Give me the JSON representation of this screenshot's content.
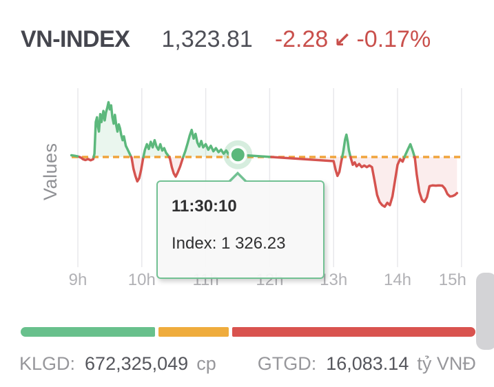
{
  "header": {
    "symbol": "VN-INDEX",
    "value": "1,323.81",
    "change": "-2.28",
    "arrow_icon": "↙",
    "change_percent": "-0.17%",
    "symbol_color": "#45464e",
    "value_color": "#4e4f57",
    "negative_color": "#c9504c"
  },
  "tooltip": {
    "time": "11:30:10",
    "index_line": "Index: 1 326.23"
  },
  "chart_data": {
    "type": "line",
    "title": "",
    "xlabel": "",
    "ylabel": "Values",
    "legend": "none",
    "grid": "vertical-only",
    "x_ticks": [
      {
        "t": 9,
        "label": "9h"
      },
      {
        "t": 10,
        "label": "10h"
      },
      {
        "t": 11,
        "label": "11h"
      },
      {
        "t": 12,
        "label": "12h"
      },
      {
        "t": 13,
        "label": "13h"
      },
      {
        "t": 14,
        "label": "14h"
      },
      {
        "t": 15,
        "label": "15h"
      }
    ],
    "x_range_hours": [
      8.9,
      15
    ],
    "y_range": [
      1322.5,
      1330.0
    ],
    "reference_value": 1326.09,
    "close_value": 1323.81,
    "marker": {
      "t": 11.503,
      "value": 1326.23,
      "time_label": "11:30:10"
    },
    "colors": {
      "up": "#5cb87c",
      "down": "#d5534f",
      "up_fill": "rgba(92,184,124,0.13)",
      "down_fill": "rgba(213,83,79,0.10)",
      "reference": "#f0a43c",
      "grid": "#e8e8eb",
      "tick_label": "#b1b1b5",
      "marker_halo": "rgba(92,184,124,0.25)"
    },
    "series": [
      {
        "name": "VN-INDEX",
        "points": [
          [
            8.9,
            1326.2
          ],
          [
            8.95,
            1326.17
          ],
          [
            9.0,
            1326.13
          ],
          [
            9.05,
            1326.05
          ],
          [
            9.08,
            1325.95
          ],
          [
            9.12,
            1325.9
          ],
          [
            9.16,
            1325.96
          ],
          [
            9.2,
            1325.88
          ],
          [
            9.24,
            1325.95
          ],
          [
            9.26,
            1326.3
          ],
          [
            9.28,
            1328.3
          ],
          [
            9.3,
            1328.6
          ],
          [
            9.31,
            1328.1
          ],
          [
            9.33,
            1327.7
          ],
          [
            9.35,
            1328.8
          ],
          [
            9.37,
            1328.3
          ],
          [
            9.4,
            1329.0
          ],
          [
            9.42,
            1328.4
          ],
          [
            9.44,
            1328.9
          ],
          [
            9.46,
            1329.2
          ],
          [
            9.48,
            1329.55
          ],
          [
            9.5,
            1329.1
          ],
          [
            9.52,
            1329.35
          ],
          [
            9.54,
            1328.6
          ],
          [
            9.56,
            1328.2
          ],
          [
            9.58,
            1328.75
          ],
          [
            9.6,
            1328.1
          ],
          [
            9.62,
            1327.7
          ],
          [
            9.64,
            1328.15
          ],
          [
            9.66,
            1327.9
          ],
          [
            9.68,
            1327.45
          ],
          [
            9.7,
            1327.15
          ],
          [
            9.72,
            1327.4
          ],
          [
            9.75,
            1326.8
          ],
          [
            9.78,
            1326.55
          ],
          [
            9.81,
            1326.3
          ],
          [
            9.84,
            1326.05
          ],
          [
            9.87,
            1325.35
          ],
          [
            9.9,
            1324.9
          ],
          [
            9.93,
            1324.55
          ],
          [
            9.96,
            1324.75
          ],
          [
            9.99,
            1325.3
          ],
          [
            10.02,
            1326.0
          ],
          [
            10.05,
            1326.55
          ],
          [
            10.08,
            1326.9
          ],
          [
            10.11,
            1326.6
          ],
          [
            10.14,
            1327.05
          ],
          [
            10.17,
            1326.7
          ],
          [
            10.2,
            1327.15
          ],
          [
            10.23,
            1326.75
          ],
          [
            10.26,
            1326.55
          ],
          [
            10.29,
            1326.9
          ],
          [
            10.32,
            1326.5
          ],
          [
            10.35,
            1326.65
          ],
          [
            10.38,
            1326.35
          ],
          [
            10.41,
            1326.2
          ],
          [
            10.44,
            1326.0
          ],
          [
            10.47,
            1325.45
          ],
          [
            10.5,
            1325.05
          ],
          [
            10.53,
            1324.85
          ],
          [
            10.56,
            1325.1
          ],
          [
            10.6,
            1325.5
          ],
          [
            10.64,
            1326.0
          ],
          [
            10.68,
            1326.45
          ],
          [
            10.72,
            1327.0
          ],
          [
            10.75,
            1327.45
          ],
          [
            10.78,
            1327.8
          ],
          [
            10.81,
            1327.25
          ],
          [
            10.84,
            1327.55
          ],
          [
            10.87,
            1327.0
          ],
          [
            10.9,
            1326.75
          ],
          [
            10.93,
            1327.1
          ],
          [
            10.96,
            1326.7
          ],
          [
            11.0,
            1326.9
          ],
          [
            11.04,
            1326.55
          ],
          [
            11.08,
            1326.8
          ],
          [
            11.12,
            1326.45
          ],
          [
            11.16,
            1326.65
          ],
          [
            11.2,
            1326.4
          ],
          [
            11.24,
            1326.55
          ],
          [
            11.28,
            1326.3
          ],
          [
            11.32,
            1326.5
          ],
          [
            11.36,
            1326.25
          ],
          [
            11.4,
            1326.4
          ],
          [
            11.44,
            1326.15
          ],
          [
            11.46,
            1325.95
          ],
          [
            11.48,
            1326.15
          ],
          [
            11.503,
            1326.23
          ],
          [
            13.0,
            1325.83
          ],
          [
            13.03,
            1325.3
          ],
          [
            13.06,
            1324.9
          ],
          [
            13.09,
            1325.15
          ],
          [
            13.12,
            1325.8
          ],
          [
            13.15,
            1326.4
          ],
          [
            13.18,
            1327.2
          ],
          [
            13.2,
            1327.5
          ],
          [
            13.22,
            1327.1
          ],
          [
            13.24,
            1326.5
          ],
          [
            13.27,
            1326.0
          ],
          [
            13.3,
            1325.6
          ],
          [
            13.33,
            1325.75
          ],
          [
            13.36,
            1325.5
          ],
          [
            13.4,
            1325.65
          ],
          [
            13.44,
            1325.45
          ],
          [
            13.48,
            1325.55
          ],
          [
            13.52,
            1325.45
          ],
          [
            13.56,
            1325.55
          ],
          [
            13.6,
            1325.45
          ],
          [
            13.64,
            1324.6
          ],
          [
            13.68,
            1323.7
          ],
          [
            13.72,
            1323.25
          ],
          [
            13.76,
            1323.05
          ],
          [
            13.8,
            1322.95
          ],
          [
            13.84,
            1323.2
          ],
          [
            13.88,
            1323.05
          ],
          [
            13.92,
            1323.6
          ],
          [
            13.96,
            1324.6
          ],
          [
            14.0,
            1325.6
          ],
          [
            14.04,
            1325.95
          ],
          [
            14.08,
            1325.8
          ],
          [
            14.12,
            1326.2
          ],
          [
            14.16,
            1326.55
          ],
          [
            14.2,
            1326.9
          ],
          [
            14.24,
            1326.45
          ],
          [
            14.27,
            1326.05
          ],
          [
            14.3,
            1325.0
          ],
          [
            14.34,
            1323.9
          ],
          [
            14.38,
            1323.4
          ],
          [
            14.42,
            1323.25
          ],
          [
            14.46,
            1323.55
          ],
          [
            14.5,
            1324.25
          ],
          [
            14.55,
            1324.3
          ],
          [
            14.6,
            1324.28
          ],
          [
            14.65,
            1324.3
          ],
          [
            14.7,
            1324.28
          ],
          [
            14.74,
            1324.1
          ],
          [
            14.78,
            1323.75
          ],
          [
            14.82,
            1323.6
          ],
          [
            14.86,
            1323.62
          ],
          [
            14.9,
            1323.7
          ],
          [
            14.93,
            1323.81
          ]
        ]
      }
    ]
  },
  "breadth_bar": {
    "segments": [
      {
        "name": "advancers",
        "color": "#68c08c",
        "fraction": 0.295
      },
      {
        "name": "unchanged",
        "color": "#efac3d",
        "fraction": 0.155
      },
      {
        "name": "decliners",
        "color": "#d9534f",
        "fraction": 0.535
      }
    ]
  },
  "footer": {
    "volume_label": "KLGD:",
    "volume_value": "672,325,049",
    "volume_unit": "cp",
    "value_label": "GTGD:",
    "value_value": "16,083.14",
    "value_unit": "tỷ VNĐ"
  }
}
